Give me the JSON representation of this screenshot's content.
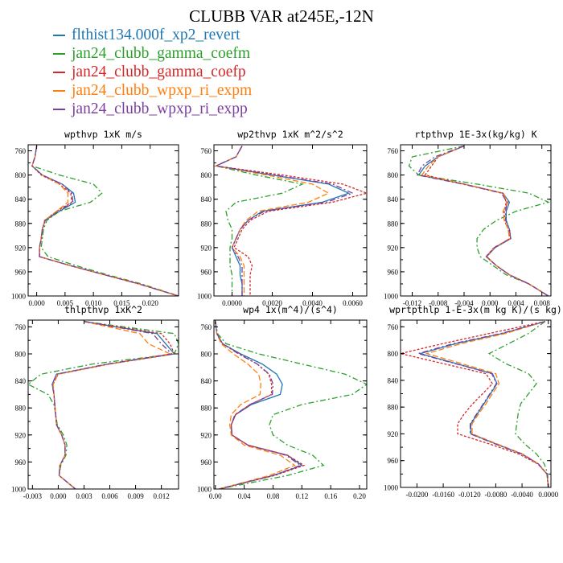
{
  "title": "CLUBB VAR at245E,-12N",
  "colors": {
    "flthist134.000f_xp2_revert": "#1f77b4",
    "jan24_clubb_gamma_coefm": "#2ca02c",
    "jan24_clubb_gamma_coefp": "#d62728",
    "jan24_clubb_wpxp_ri_expm": "#ff7f0e",
    "jan24_clubb_wpxp_ri_expp": "#7b3f9e"
  },
  "legend": [
    {
      "label": "flthist134.000f_xp2_revert",
      "color": "#1f77b4"
    },
    {
      "label": "jan24_clubb_gamma_coefm",
      "color": "#2ca02c"
    },
    {
      "label": "jan24_clubb_gamma_coefp",
      "color": "#d62728"
    },
    {
      "label": "jan24_clubb_wpxp_ri_expm",
      "color": "#ff7f0e"
    },
    {
      "label": "jan24_clubb_wpxp_ri_expp",
      "color": "#7b3f9e"
    }
  ],
  "chart_data": [
    {
      "type": "line",
      "title": "wpthvp  1xK m/s",
      "ylim": [
        1000,
        750
      ],
      "yticks": [
        760,
        800,
        840,
        880,
        920,
        960,
        1000
      ],
      "xlim": [
        -0.0015,
        0.025
      ],
      "xticks": [
        0.0,
        0.005,
        0.01,
        0.015,
        0.02
      ],
      "xticklabels": [
        "0.000",
        "0.005",
        "0.010",
        "0.015",
        "0.020"
      ],
      "grid": false,
      "y": [
        752,
        770,
        785,
        800,
        815,
        830,
        845,
        860,
        875,
        890,
        905,
        920,
        935,
        950,
        965,
        980,
        1000
      ],
      "series": [
        {
          "name": "flthist134.000f_xp2_revert",
          "values": [
            0.0,
            -0.0003,
            -0.0008,
            0.001,
            0.0045,
            0.0065,
            0.0068,
            0.004,
            0.0015,
            0.001,
            0.0008,
            0.0005,
            0.0005,
            0.006,
            0.012,
            0.018,
            0.025
          ]
        },
        {
          "name": "jan24_clubb_gamma_coefm",
          "values": [
            0.0,
            -0.0003,
            -0.0008,
            0.004,
            0.01,
            0.0115,
            0.0095,
            0.004,
            0.0018,
            0.0012,
            0.001,
            0.0008,
            0.002,
            0.007,
            0.0125,
            0.0185,
            0.025
          ]
        },
        {
          "name": "jan24_clubb_gamma_coefp",
          "values": [
            0.0,
            -0.0003,
            -0.0008,
            0.0008,
            0.004,
            0.006,
            0.0062,
            0.0035,
            0.0014,
            0.001,
            0.0008,
            0.0005,
            0.0005,
            0.006,
            0.012,
            0.018,
            0.025
          ]
        },
        {
          "name": "jan24_clubb_wpxp_ri_expm",
          "values": [
            0.0,
            -0.0003,
            -0.0008,
            0.001,
            0.004,
            0.0055,
            0.0055,
            0.0035,
            0.0014,
            0.001,
            0.0008,
            0.0005,
            0.0005,
            0.006,
            0.012,
            0.018,
            0.025
          ]
        },
        {
          "name": "jan24_clubb_wpxp_ri_expp",
          "values": [
            0.0,
            -0.0003,
            -0.0008,
            0.001,
            0.0045,
            0.0062,
            0.0064,
            0.0038,
            0.0015,
            0.001,
            0.0008,
            0.0005,
            0.0005,
            0.006,
            0.012,
            0.018,
            0.025
          ]
        }
      ]
    },
    {
      "type": "line",
      "title": "wp2thvp  1xK m^2/s^2",
      "ylim": [
        1000,
        750
      ],
      "yticks": [
        760,
        800,
        840,
        880,
        920,
        960,
        1000
      ],
      "xlim": [
        -0.0009,
        0.0067
      ],
      "xticks": [
        0.0,
        0.002,
        0.004,
        0.006
      ],
      "xticklabels": [
        "0.0000",
        "0.0020",
        "0.0040",
        "0.0060"
      ],
      "grid": false,
      "y": [
        752,
        770,
        785,
        800,
        815,
        830,
        845,
        860,
        875,
        890,
        905,
        920,
        935,
        950,
        965,
        980,
        1000
      ],
      "series": [
        {
          "name": "flthist134.000f_xp2_revert",
          "values": [
            0.0005,
            0.0002,
            -0.0008,
            0.002,
            0.0048,
            0.0058,
            0.0045,
            0.0015,
            0.0008,
            0.0004,
            0.0002,
            0.0,
            0.0002,
            0.0004,
            0.0004,
            0.0005,
            0.0005
          ]
        },
        {
          "name": "jan24_clubb_gamma_coefm",
          "values": [
            0.0005,
            0.0002,
            -0.0008,
            0.0012,
            0.0035,
            0.0025,
            0.0002,
            -0.0003,
            -0.0002,
            0.0,
            0.0,
            -0.0001,
            -0.0001,
            -0.0001,
            0.0,
            0.0,
            0.0
          ]
        },
        {
          "name": "jan24_clubb_gamma_coefp",
          "values": [
            0.0005,
            0.0002,
            -0.0008,
            0.0025,
            0.0055,
            0.0067,
            0.005,
            0.0018,
            0.0009,
            0.0005,
            0.0003,
            0.0001,
            0.0008,
            0.001,
            0.0009,
            0.0009,
            0.0009
          ]
        },
        {
          "name": "jan24_clubb_wpxp_ri_expm",
          "values": [
            0.0005,
            0.0002,
            -0.0008,
            0.0017,
            0.004,
            0.0048,
            0.0038,
            0.0013,
            0.0007,
            0.0004,
            0.0002,
            0.0,
            0.0004,
            0.0006,
            0.0006,
            0.0006,
            0.0006
          ]
        },
        {
          "name": "jan24_clubb_wpxp_ri_expp",
          "values": [
            0.0005,
            0.0002,
            -0.0008,
            0.0021,
            0.005,
            0.006,
            0.0047,
            0.0016,
            0.0008,
            0.0004,
            0.0002,
            0.0,
            0.0003,
            0.0005,
            0.0005,
            0.0005,
            0.0005
          ]
        }
      ]
    },
    {
      "type": "line",
      "title": "rtpthvp  1E-3x(kg/kg) K",
      "ylim": [
        1000,
        750
      ],
      "yticks": [
        760,
        800,
        840,
        880,
        920,
        960,
        1000
      ],
      "xlim": [
        -0.0138,
        0.0094
      ],
      "xticks": [
        -0.012,
        -0.008,
        -0.004,
        0.0,
        0.004,
        0.008
      ],
      "xticklabels": [
        "-0.012",
        "-0.008",
        "-0.004",
        "0.000",
        "0.004",
        "0.008"
      ],
      "grid": false,
      "y": [
        752,
        770,
        785,
        800,
        815,
        830,
        845,
        860,
        875,
        890,
        905,
        920,
        935,
        950,
        965,
        980,
        1000
      ],
      "series": [
        {
          "name": "flthist134.000f_xp2_revert",
          "values": [
            -0.004,
            -0.008,
            -0.01,
            -0.011,
            -0.004,
            0.002,
            0.003,
            0.0025,
            0.0025,
            0.003,
            0.0032,
            0.0008,
            -0.0005,
            0.001,
            0.003,
            0.006,
            0.009
          ]
        },
        {
          "name": "jan24_clubb_gamma_coefm",
          "values": [
            -0.004,
            -0.012,
            -0.0125,
            -0.011,
            -0.002,
            0.006,
            0.009,
            0.004,
            0.001,
            -0.001,
            -0.002,
            -0.002,
            -0.0015,
            0.0005,
            0.0025,
            0.006,
            0.009
          ]
        },
        {
          "name": "jan24_clubb_gamma_coefp",
          "values": [
            -0.004,
            -0.008,
            -0.009,
            -0.01,
            -0.004,
            0.002,
            0.0025,
            0.0022,
            0.0022,
            0.0028,
            0.0032,
            0.0006,
            -0.0006,
            0.001,
            0.003,
            0.006,
            0.009
          ]
        },
        {
          "name": "jan24_clubb_wpxp_ri_expm",
          "values": [
            -0.004,
            -0.008,
            -0.0095,
            -0.0105,
            -0.004,
            0.002,
            0.0028,
            0.002,
            0.0022,
            0.0028,
            0.003,
            0.0007,
            -0.0005,
            0.001,
            0.003,
            0.006,
            0.009
          ]
        },
        {
          "name": "jan24_clubb_wpxp_ri_expp",
          "values": [
            -0.004,
            -0.0085,
            -0.0105,
            -0.0112,
            -0.0042,
            0.0018,
            0.0026,
            0.0024,
            0.0024,
            0.003,
            0.0032,
            0.0007,
            -0.0006,
            0.001,
            0.003,
            0.006,
            0.009
          ]
        }
      ]
    },
    {
      "type": "line",
      "title": "thlpthvp  1xK^2",
      "ylim": [
        1000,
        750
      ],
      "yticks": [
        760,
        800,
        840,
        880,
        920,
        960,
        1000
      ],
      "xlim": [
        -0.0035,
        0.014
      ],
      "xticks": [
        -0.003,
        0.0,
        0.003,
        0.006,
        0.009,
        0.012
      ],
      "xticklabels": [
        "-0.003",
        "0.000",
        "0.003",
        "0.006",
        "0.009",
        "0.012"
      ],
      "grid": false,
      "y": [
        752,
        770,
        785,
        800,
        815,
        830,
        845,
        860,
        875,
        890,
        905,
        920,
        935,
        950,
        965,
        980,
        1000
      ],
      "series": [
        {
          "name": "flthist134.000f_xp2_revert",
          "values": [
            0.003,
            0.0115,
            0.0125,
            0.0135,
            0.0058,
            -0.0002,
            -0.0007,
            -0.0005,
            -0.0004,
            -0.0003,
            -0.0002,
            0.0004,
            0.0008,
            0.0008,
            0.0002,
            0.0001,
            0.002
          ]
        },
        {
          "name": "jan24_clubb_gamma_coefm",
          "values": [
            0.003,
            0.0135,
            0.014,
            0.0135,
            0.004,
            -0.002,
            -0.0035,
            -0.0012,
            -0.0005,
            -0.0003,
            -0.0001,
            0.0006,
            0.001,
            0.0009,
            0.0003,
            0.0001,
            0.002
          ]
        },
        {
          "name": "jan24_clubb_gamma_coefp",
          "values": [
            0.003,
            0.012,
            0.013,
            0.0135,
            0.006,
            0.0,
            -0.0006,
            -0.0005,
            -0.0004,
            -0.0003,
            -0.0002,
            0.0004,
            0.0008,
            0.0008,
            0.0002,
            0.0001,
            0.002
          ]
        },
        {
          "name": "jan24_clubb_wpxp_ri_expm",
          "values": [
            0.003,
            0.0095,
            0.0105,
            0.013,
            0.006,
            0.0,
            -0.0006,
            -0.0005,
            -0.0004,
            -0.0003,
            -0.0002,
            0.0004,
            0.0008,
            0.0008,
            0.0002,
            0.0001,
            0.002
          ]
        },
        {
          "name": "jan24_clubb_wpxp_ri_expp",
          "values": [
            0.003,
            0.011,
            0.012,
            0.0132,
            0.0057,
            -0.0002,
            -0.0007,
            -0.0005,
            -0.0004,
            -0.0003,
            -0.0002,
            0.0004,
            0.0008,
            0.0008,
            0.0002,
            0.0001,
            0.002
          ]
        }
      ]
    },
    {
      "type": "line",
      "title": "wp4  1x(m^4)/(s^4)",
      "ylim": [
        1000,
        750
      ],
      "yticks": [
        760,
        800,
        840,
        880,
        920,
        960,
        1000
      ],
      "xlim": [
        -0.002,
        0.21
      ],
      "xticks": [
        0.0,
        0.04,
        0.08,
        0.12,
        0.16,
        0.2
      ],
      "xticklabels": [
        "0.00",
        "0.04",
        "0.08",
        "0.12",
        "0.16",
        "0.20"
      ],
      "grid": false,
      "y": [
        752,
        770,
        785,
        800,
        815,
        830,
        845,
        860,
        875,
        890,
        905,
        920,
        935,
        950,
        965,
        980,
        1000
      ],
      "series": [
        {
          "name": "flthist134.000f_xp2_revert",
          "values": [
            0.0,
            0.002,
            0.01,
            0.035,
            0.065,
            0.085,
            0.093,
            0.09,
            0.05,
            0.028,
            0.022,
            0.023,
            0.045,
            0.1,
            0.12,
            0.08,
            0.005
          ]
        },
        {
          "name": "jan24_clubb_gamma_coefm",
          "values": [
            0.0,
            0.003,
            0.015,
            0.06,
            0.12,
            0.18,
            0.21,
            0.19,
            0.12,
            0.08,
            0.075,
            0.08,
            0.1,
            0.135,
            0.15,
            0.1,
            0.005
          ]
        },
        {
          "name": "jan24_clubb_gamma_coefp",
          "values": [
            0.0,
            0.002,
            0.01,
            0.033,
            0.058,
            0.074,
            0.078,
            0.078,
            0.048,
            0.028,
            0.022,
            0.023,
            0.045,
            0.1,
            0.123,
            0.082,
            0.005
          ]
        },
        {
          "name": "jan24_clubb_wpxp_ri_expm",
          "values": [
            0.0,
            0.002,
            0.008,
            0.025,
            0.045,
            0.06,
            0.063,
            0.062,
            0.035,
            0.022,
            0.02,
            0.022,
            0.04,
            0.09,
            0.11,
            0.075,
            0.005
          ]
        },
        {
          "name": "jan24_clubb_wpxp_ri_expp",
          "values": [
            0.0,
            0.002,
            0.01,
            0.032,
            0.058,
            0.075,
            0.08,
            0.079,
            0.048,
            0.027,
            0.022,
            0.023,
            0.045,
            0.098,
            0.118,
            0.08,
            0.005
          ]
        }
      ]
    },
    {
      "type": "line",
      "title": "wprtpthlp  1-E-3x(m kg K)/(s kg)",
      "ylim": [
        1000,
        750
      ],
      "yticks": [
        760,
        800,
        840,
        880,
        920,
        960,
        1000
      ],
      "xlim": [
        -0.0225,
        0.0004
      ],
      "xticks": [
        -0.02,
        -0.016,
        -0.012,
        -0.008,
        -0.004,
        0.0
      ],
      "xticklabels": [
        "-0.0200",
        "-0.0160",
        "-0.0120",
        "-0.0080",
        "-0.0040",
        "0.0000"
      ],
      "grid": false,
      "y": [
        752,
        770,
        785,
        800,
        815,
        830,
        845,
        860,
        875,
        890,
        905,
        920,
        935,
        950,
        965,
        980,
        1000
      ],
      "series": [
        {
          "name": "flthist134.000f_xp2_revert",
          "values": [
            -0.0005,
            -0.007,
            -0.014,
            -0.0195,
            -0.014,
            -0.0085,
            -0.0078,
            -0.0088,
            -0.0098,
            -0.0108,
            -0.0118,
            -0.0118,
            -0.008,
            -0.004,
            -0.0015,
            -0.0002,
            0.0
          ]
        },
        {
          "name": "jan24_clubb_gamma_coefm",
          "values": [
            -0.0005,
            -0.003,
            -0.006,
            -0.009,
            -0.0065,
            -0.003,
            -0.0018,
            -0.003,
            -0.0042,
            -0.0046,
            -0.0048,
            -0.005,
            -0.0036,
            -0.0018,
            -0.0006,
            -0.0001,
            0.0
          ]
        },
        {
          "name": "jan24_clubb_gamma_coefp",
          "values": [
            -0.0005,
            -0.009,
            -0.016,
            -0.0225,
            -0.016,
            -0.0095,
            -0.0085,
            -0.01,
            -0.0115,
            -0.0128,
            -0.0138,
            -0.0138,
            -0.009,
            -0.0045,
            -0.0016,
            -0.0002,
            0.0
          ]
        },
        {
          "name": "jan24_clubb_wpxp_ri_expm",
          "values": [
            -0.0005,
            -0.0065,
            -0.0132,
            -0.0185,
            -0.0132,
            -0.008,
            -0.0075,
            -0.0085,
            -0.0095,
            -0.0106,
            -0.0116,
            -0.0116,
            -0.0078,
            -0.0039,
            -0.0015,
            -0.0002,
            0.0
          ]
        },
        {
          "name": "jan24_clubb_wpxp_ri_expp",
          "values": [
            -0.0005,
            -0.0072,
            -0.0144,
            -0.0198,
            -0.0142,
            -0.0086,
            -0.0079,
            -0.0089,
            -0.0099,
            -0.0109,
            -0.0119,
            -0.0119,
            -0.0081,
            -0.0041,
            -0.0015,
            -0.0002,
            0.0
          ]
        }
      ]
    }
  ]
}
